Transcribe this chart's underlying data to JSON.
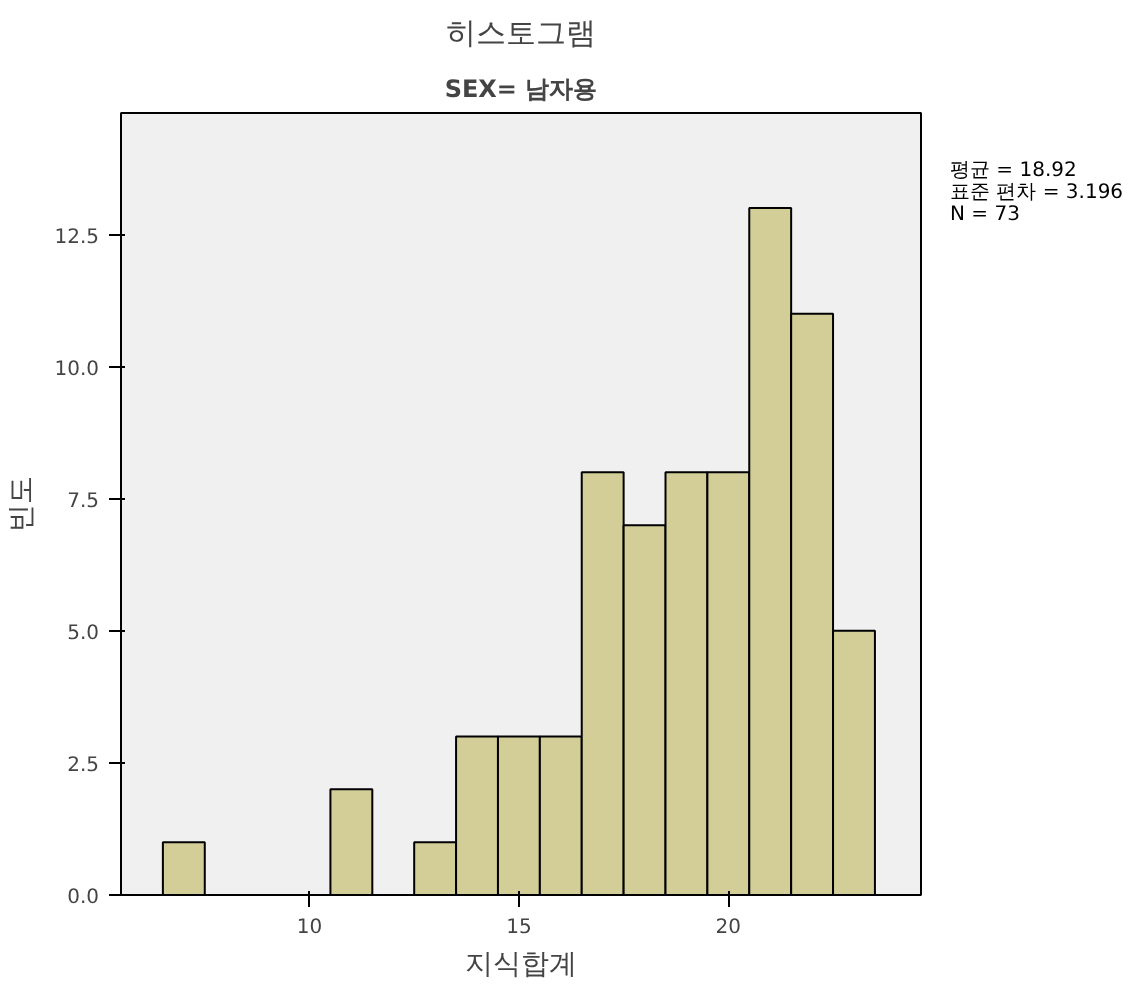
{
  "chart_data": {
    "type": "histogram",
    "title": "히스토그램",
    "subtitle": "SEX= 남자용",
    "xlabel": "지식합계",
    "ylabel": "빈도",
    "bins": [
      6.5,
      7.5,
      8.5,
      9.5,
      10.5,
      11.5,
      12.5,
      13.5,
      14.5,
      15.5,
      16.5,
      17.5,
      18.5,
      19.5,
      20.5,
      21.5,
      22.5,
      23.5
    ],
    "values": [
      1,
      0,
      0,
      0,
      2,
      0,
      1,
      3,
      3,
      3,
      8,
      7,
      8,
      8,
      13,
      11,
      5
    ],
    "color": "#d3ce97",
    "xlim": [
      5.5,
      24.6
    ],
    "xticks": [
      10,
      15,
      20
    ],
    "ylim": [
      0,
      14.8
    ],
    "yticks": [
      {
        "value": 0,
        "label": "0.0"
      },
      {
        "value": 2.5,
        "label": "2.5"
      },
      {
        "value": 5,
        "label": "5.0"
      },
      {
        "value": 7.5,
        "label": "7.5"
      },
      {
        "value": 10,
        "label": "10.0"
      },
      {
        "value": 12.5,
        "label": "12.5"
      }
    ],
    "grid": false,
    "annotations": [
      "평균 = 18.92",
      "표준 편차 = 3.196",
      "N = 73"
    ]
  }
}
